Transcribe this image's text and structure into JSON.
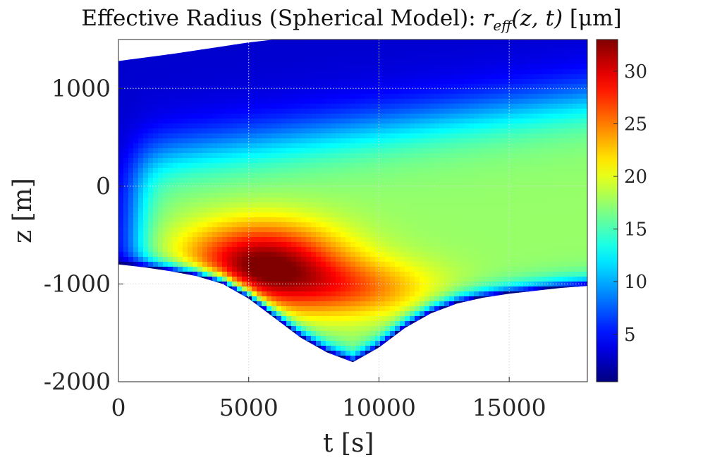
{
  "chart_data": {
    "type": "heatmap",
    "title": {
      "text": "Effective Radius (Spherical Model): ",
      "math_var": "r",
      "math_sub": "eff",
      "math_args": "(z, t)",
      "units": " [μm]"
    },
    "xlabel": "t [s]",
    "ylabel": "z [m]",
    "xlim": [
      0,
      18000
    ],
    "ylim": [
      -2000,
      1500
    ],
    "xticks": [
      0,
      5000,
      10000,
      15000
    ],
    "yticks": [
      -2000,
      -1000,
      0,
      1000
    ],
    "grid": true,
    "colormap": "jet",
    "colorbar": {
      "clim": [
        0.5,
        33
      ],
      "ticks": [
        5,
        10,
        15,
        20,
        25,
        30
      ]
    },
    "domain_bottom_boundary": [
      [
        0,
        -800
      ],
      [
        1000,
        -830
      ],
      [
        2000,
        -870
      ],
      [
        3000,
        -920
      ],
      [
        4000,
        -1000
      ],
      [
        5000,
        -1150
      ],
      [
        6000,
        -1350
      ],
      [
        7000,
        -1550
      ],
      [
        8000,
        -1700
      ],
      [
        9000,
        -1800
      ],
      [
        10000,
        -1650
      ],
      [
        11000,
        -1450
      ],
      [
        12000,
        -1300
      ],
      [
        13000,
        -1200
      ],
      [
        14000,
        -1140
      ],
      [
        15000,
        -1100
      ],
      [
        16000,
        -1070
      ],
      [
        17000,
        -1040
      ],
      [
        18000,
        -1020
      ]
    ],
    "domain_top_boundary": [
      [
        0,
        1280
      ],
      [
        2000,
        1350
      ],
      [
        4000,
        1430
      ],
      [
        5000,
        1470
      ],
      [
        6000,
        1500
      ],
      [
        18000,
        1500
      ]
    ],
    "peak": {
      "t": 5500,
      "z": -800,
      "r_eff": 33
    }
  }
}
